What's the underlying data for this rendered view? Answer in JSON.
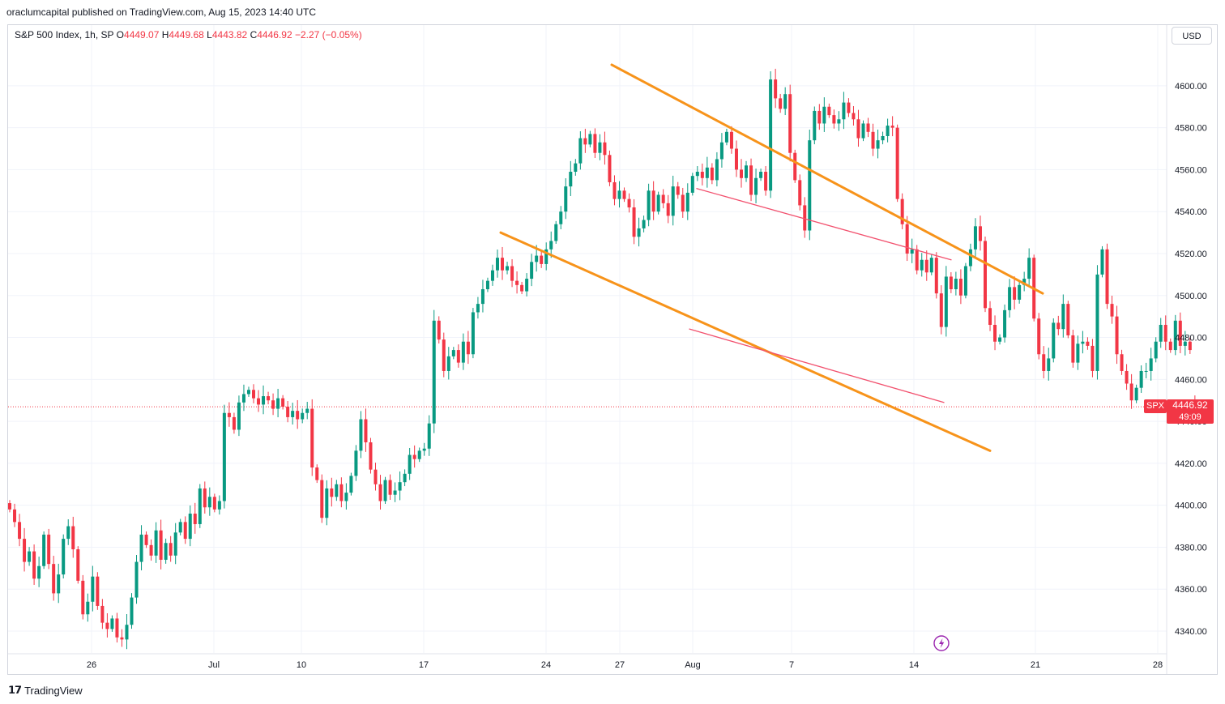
{
  "publisher": "oraclumcapital published on TradingView.com, Aug 15, 2023 14:40 UTC",
  "legend": {
    "symbol": "S&P 500 Index, 1h, SP",
    "open_label": "O",
    "open": "4449.07",
    "high_label": "H",
    "high": "4449.68",
    "low_label": "L",
    "low": "4443.82",
    "close_label": "C",
    "close": "4446.92",
    "change": "−2.27 (−0.05%)"
  },
  "currency_button": "USD",
  "price_tag": {
    "symbol": "SPX",
    "price": "4446.92",
    "countdown": "49:09"
  },
  "footer_logo": "TradingView",
  "footer_logo_mark": "𝟭𝟳",
  "colors": {
    "up": "#089981",
    "down": "#f23645",
    "channel": "#f7931a",
    "inner_channel": "#f2516e",
    "event_icon": "#9c27b0"
  },
  "chart_data": {
    "type": "candlestick",
    "ylim": [
      4330,
      4620
    ],
    "y_ticks": [
      4340,
      4360,
      4380,
      4400,
      4420,
      4440,
      4460,
      4480,
      4500,
      4520,
      4540,
      4560,
      4580,
      4600
    ],
    "y_tick_labels": [
      "4340.00",
      "4360.00",
      "4380.00",
      "4400.00",
      "4420.00",
      "4440.00",
      "4460.00",
      "4480.00",
      "4500.00",
      "4520.00",
      "4540.00",
      "4560.00",
      "4580.00",
      "4600.00"
    ],
    "x_ticks": [
      {
        "label": "26",
        "x": "2023-06-26"
      },
      {
        "label": "Jul",
        "x": "2023-07-01"
      },
      {
        "label": "10",
        "x": "2023-07-10"
      },
      {
        "label": "17",
        "x": "2023-07-17"
      },
      {
        "label": "24",
        "x": "2023-07-24"
      },
      {
        "label": "27",
        "x": "2023-07-27"
      },
      {
        "label": "Aug",
        "x": "2023-08-01"
      },
      {
        "label": "7",
        "x": "2023-08-07"
      },
      {
        "label": "14",
        "x": "2023-08-14"
      },
      {
        "label": "21",
        "x": "2023-08-21"
      },
      {
        "label": "28",
        "x": "2023-08-28"
      }
    ],
    "last_price": 4446.92,
    "closes": [
      4398,
      4392,
      4384,
      4373,
      4378,
      4365,
      4371,
      4386,
      4372,
      4358,
      4367,
      4384,
      4390,
      4379,
      4364,
      4348,
      4354,
      4366,
      4352,
      4344,
      4341,
      4346,
      4337,
      4336,
      4343,
      4356,
      4373,
      4386,
      4381,
      4376,
      4388,
      4374,
      4382,
      4376,
      4387,
      4392,
      4384,
      4396,
      4391,
      4408,
      4399,
      4404,
      4398,
      4402,
      4444,
      4442,
      4436,
      4449,
      4453,
      4455,
      4451,
      4448,
      4452,
      4450,
      4446,
      4451,
      4447,
      4442,
      4445,
      4441,
      4444,
      4446,
      4418,
      4412,
      4394,
      4408,
      4404,
      4410,
      4402,
      4406,
      4414,
      4426,
      4441,
      4430,
      4417,
      4410,
      4402,
      4412,
      4405,
      4407,
      4411,
      4415,
      4424,
      4422,
      4426,
      4427,
      4439,
      4488,
      4479,
      4464,
      4471,
      4474,
      4468,
      4478,
      4472,
      4492,
      4496,
      4503,
      4507,
      4512,
      4518,
      4512,
      4514,
      4507,
      4505,
      4502,
      4508,
      4516,
      4519,
      4515,
      4522,
      4526,
      4534,
      4540,
      4552,
      4559,
      4563,
      4575,
      4572,
      4577,
      4568,
      4573,
      4567,
      4554,
      4546,
      4550,
      4546,
      4542,
      4528,
      4532,
      4536,
      4550,
      4540,
      4548,
      4544,
      4538,
      4552,
      4548,
      4540,
      4549,
      4557,
      4559,
      4556,
      4561,
      4555,
      4565,
      4573,
      4578,
      4570,
      4560,
      4556,
      4562,
      4548,
      4556,
      4559,
      4550,
      4603,
      4594,
      4589,
      4596,
      4568,
      4555,
      4543,
      4531,
      4574,
      4588,
      4582,
      4590,
      4586,
      4582,
      4584,
      4592,
      4587,
      4584,
      4575,
      4582,
      4578,
      4570,
      4574,
      4576,
      4581,
      4580,
      4546,
      4534,
      4520,
      4522,
      4512,
      4517,
      4511,
      4518,
      4501,
      4485,
      4509,
      4503,
      4508,
      4500,
      4514,
      4522,
      4533,
      4526,
      4494,
      4486,
      4478,
      4480,
      4493,
      4504,
      4498,
      4505,
      4508,
      4518,
      4489,
      4472,
      4464,
      4470,
      4487,
      4484,
      4496,
      4481,
      4468,
      4477,
      4478,
      4476,
      4464,
      4510,
      4522,
      4496,
      4490,
      4472,
      4464,
      4458,
      4450,
      4456,
      4464,
      4464,
      4470,
      4478,
      4486,
      4478,
      4474,
      4488,
      4476,
      4478,
      4474,
      4446
    ]
  }
}
